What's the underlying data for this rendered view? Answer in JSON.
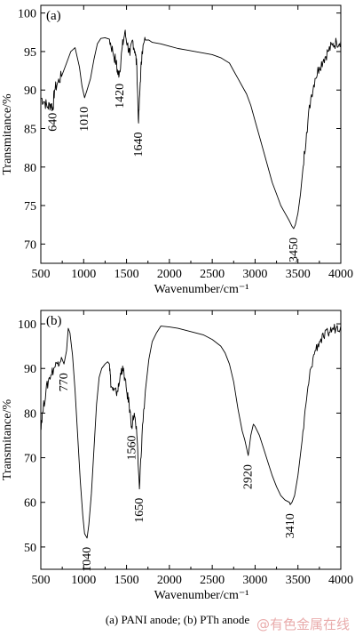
{
  "caption": "(a) PANI anode; (b) PTh anode",
  "watermark": "@有色金属在线",
  "chart_data": [
    {
      "type": "line",
      "panel": "(a)",
      "xlabel": "Wavenumber/cm⁻¹",
      "ylabel": "Transmitance/%",
      "xlim": [
        500,
        4000
      ],
      "ylim": [
        67.5,
        101
      ],
      "xticks": [
        500,
        1000,
        1500,
        2000,
        2500,
        3000,
        3500,
        4000
      ],
      "yticks": [
        70,
        75,
        80,
        85,
        90,
        95,
        100
      ],
      "grid": false,
      "annotations": [
        {
          "text": "640",
          "x": 640,
          "y": 88.2
        },
        {
          "text": "1010",
          "x": 1010,
          "y": 89.0
        },
        {
          "text": "1420",
          "x": 1420,
          "y": 92.0
        },
        {
          "text": "1640",
          "x": 1640,
          "y": 85.7
        },
        {
          "text": "3450",
          "x": 3450,
          "y": 72.0
        }
      ],
      "series": [
        {
          "x": [
            500,
            540,
            580,
            620,
            640,
            660,
            700,
            750,
            800,
            850,
            900,
            950,
            980,
            1010,
            1040,
            1080,
            1120,
            1160,
            1200,
            1250,
            1300,
            1340,
            1380,
            1400,
            1420,
            1450,
            1480,
            1510,
            1540,
            1570,
            1600,
            1620,
            1640,
            1660,
            1680,
            1720,
            1760,
            1800,
            1900,
            2000,
            2100,
            2200,
            2300,
            2400,
            2500,
            2600,
            2700,
            2750,
            2800,
            2850,
            2900,
            2950,
            3000,
            3050,
            3100,
            3150,
            3200,
            3250,
            3300,
            3350,
            3400,
            3430,
            3450,
            3470,
            3500,
            3530,
            3560,
            3600,
            3650,
            3700,
            3750,
            3800,
            3850,
            3900,
            3950,
            4000
          ],
          "y": [
            89.0,
            88.5,
            87.8,
            88.2,
            87.5,
            90.0,
            91.0,
            92.0,
            93.5,
            95.0,
            95.5,
            93.0,
            90.5,
            89.0,
            90.0,
            91.5,
            94.0,
            96.0,
            96.7,
            96.8,
            96.6,
            95.0,
            93.5,
            92.0,
            92.5,
            95.5,
            97.5,
            96.0,
            94.5,
            96.5,
            95.0,
            93.0,
            85.7,
            91.0,
            95.0,
            96.5,
            96.5,
            96.2,
            96.0,
            95.7,
            95.4,
            95.2,
            95.0,
            94.8,
            94.6,
            94.2,
            93.5,
            92.5,
            91.5,
            90.5,
            89.5,
            88.0,
            86.0,
            84.0,
            82.0,
            80.0,
            78.0,
            76.5,
            75.0,
            74.0,
            73.0,
            72.3,
            72.0,
            72.5,
            74.0,
            76.5,
            80.0,
            84.5,
            89.0,
            91.5,
            93.0,
            94.0,
            95.0,
            95.8,
            96.2,
            96.4
          ]
        }
      ]
    },
    {
      "type": "line",
      "panel": "(b)",
      "xlabel": "Wavenumber/cm⁻¹",
      "ylabel": "Transmitance/%",
      "xlim": [
        500,
        4000
      ],
      "ylim": [
        45,
        103
      ],
      "xticks": [
        500,
        1000,
        1500,
        2000,
        2500,
        3000,
        3500,
        4000
      ],
      "yticks": [
        50,
        60,
        70,
        80,
        90,
        100
      ],
      "grid": false,
      "annotations": [
        {
          "text": "770",
          "x": 770,
          "y": 91.0
        },
        {
          "text": "1040",
          "x": 1040,
          "y": 52.0
        },
        {
          "text": "1560",
          "x": 1560,
          "y": 77.0
        },
        {
          "text": "1650",
          "x": 1650,
          "y": 63.0
        },
        {
          "text": "2920",
          "x": 2920,
          "y": 70.5
        },
        {
          "text": "3410",
          "x": 3410,
          "y": 59.5
        }
      ],
      "series": [
        {
          "x": [
            500,
            520,
            560,
            600,
            650,
            700,
            740,
            770,
            800,
            820,
            840,
            870,
            900,
            930,
            960,
            990,
            1010,
            1040,
            1060,
            1090,
            1120,
            1150,
            1180,
            1210,
            1250,
            1280,
            1300,
            1320,
            1350,
            1380,
            1410,
            1440,
            1470,
            1500,
            1530,
            1560,
            1590,
            1620,
            1650,
            1680,
            1720,
            1760,
            1800,
            1850,
            1900,
            1950,
            2000,
            2100,
            2200,
            2300,
            2400,
            2500,
            2600,
            2650,
            2700,
            2750,
            2800,
            2850,
            2880,
            2920,
            2950,
            2980,
            3000,
            3050,
            3100,
            3150,
            3200,
            3250,
            3300,
            3350,
            3400,
            3410,
            3430,
            3460,
            3500,
            3550,
            3600,
            3650,
            3700,
            3750,
            3800,
            3850,
            3900,
            3950,
            4000
          ],
          "y": [
            77.0,
            80.0,
            85.0,
            88.0,
            90.0,
            91.5,
            92.5,
            91.0,
            94.0,
            99.0,
            98.0,
            93.0,
            85.0,
            75.0,
            65.0,
            57.0,
            53.0,
            52.0,
            55.0,
            62.0,
            72.0,
            82.0,
            88.0,
            90.0,
            91.0,
            91.5,
            91.0,
            86.0,
            85.0,
            84.5,
            86.0,
            90.0,
            89.0,
            85.0,
            82.0,
            77.0,
            80.0,
            75.0,
            63.0,
            75.0,
            85.0,
            92.0,
            96.0,
            98.0,
            99.5,
            99.4,
            99.3,
            99.0,
            98.5,
            98.0,
            97.5,
            96.5,
            95.0,
            93.5,
            91.0,
            87.0,
            81.0,
            76.0,
            74.0,
            70.5,
            75.0,
            77.5,
            77.0,
            75.0,
            72.0,
            69.0,
            66.0,
            63.5,
            61.5,
            60.5,
            60.0,
            59.5,
            60.0,
            61.5,
            66.0,
            74.0,
            83.0,
            90.0,
            94.0,
            96.0,
            97.0,
            98.0,
            98.8,
            99.2,
            99.5
          ]
        }
      ]
    }
  ]
}
